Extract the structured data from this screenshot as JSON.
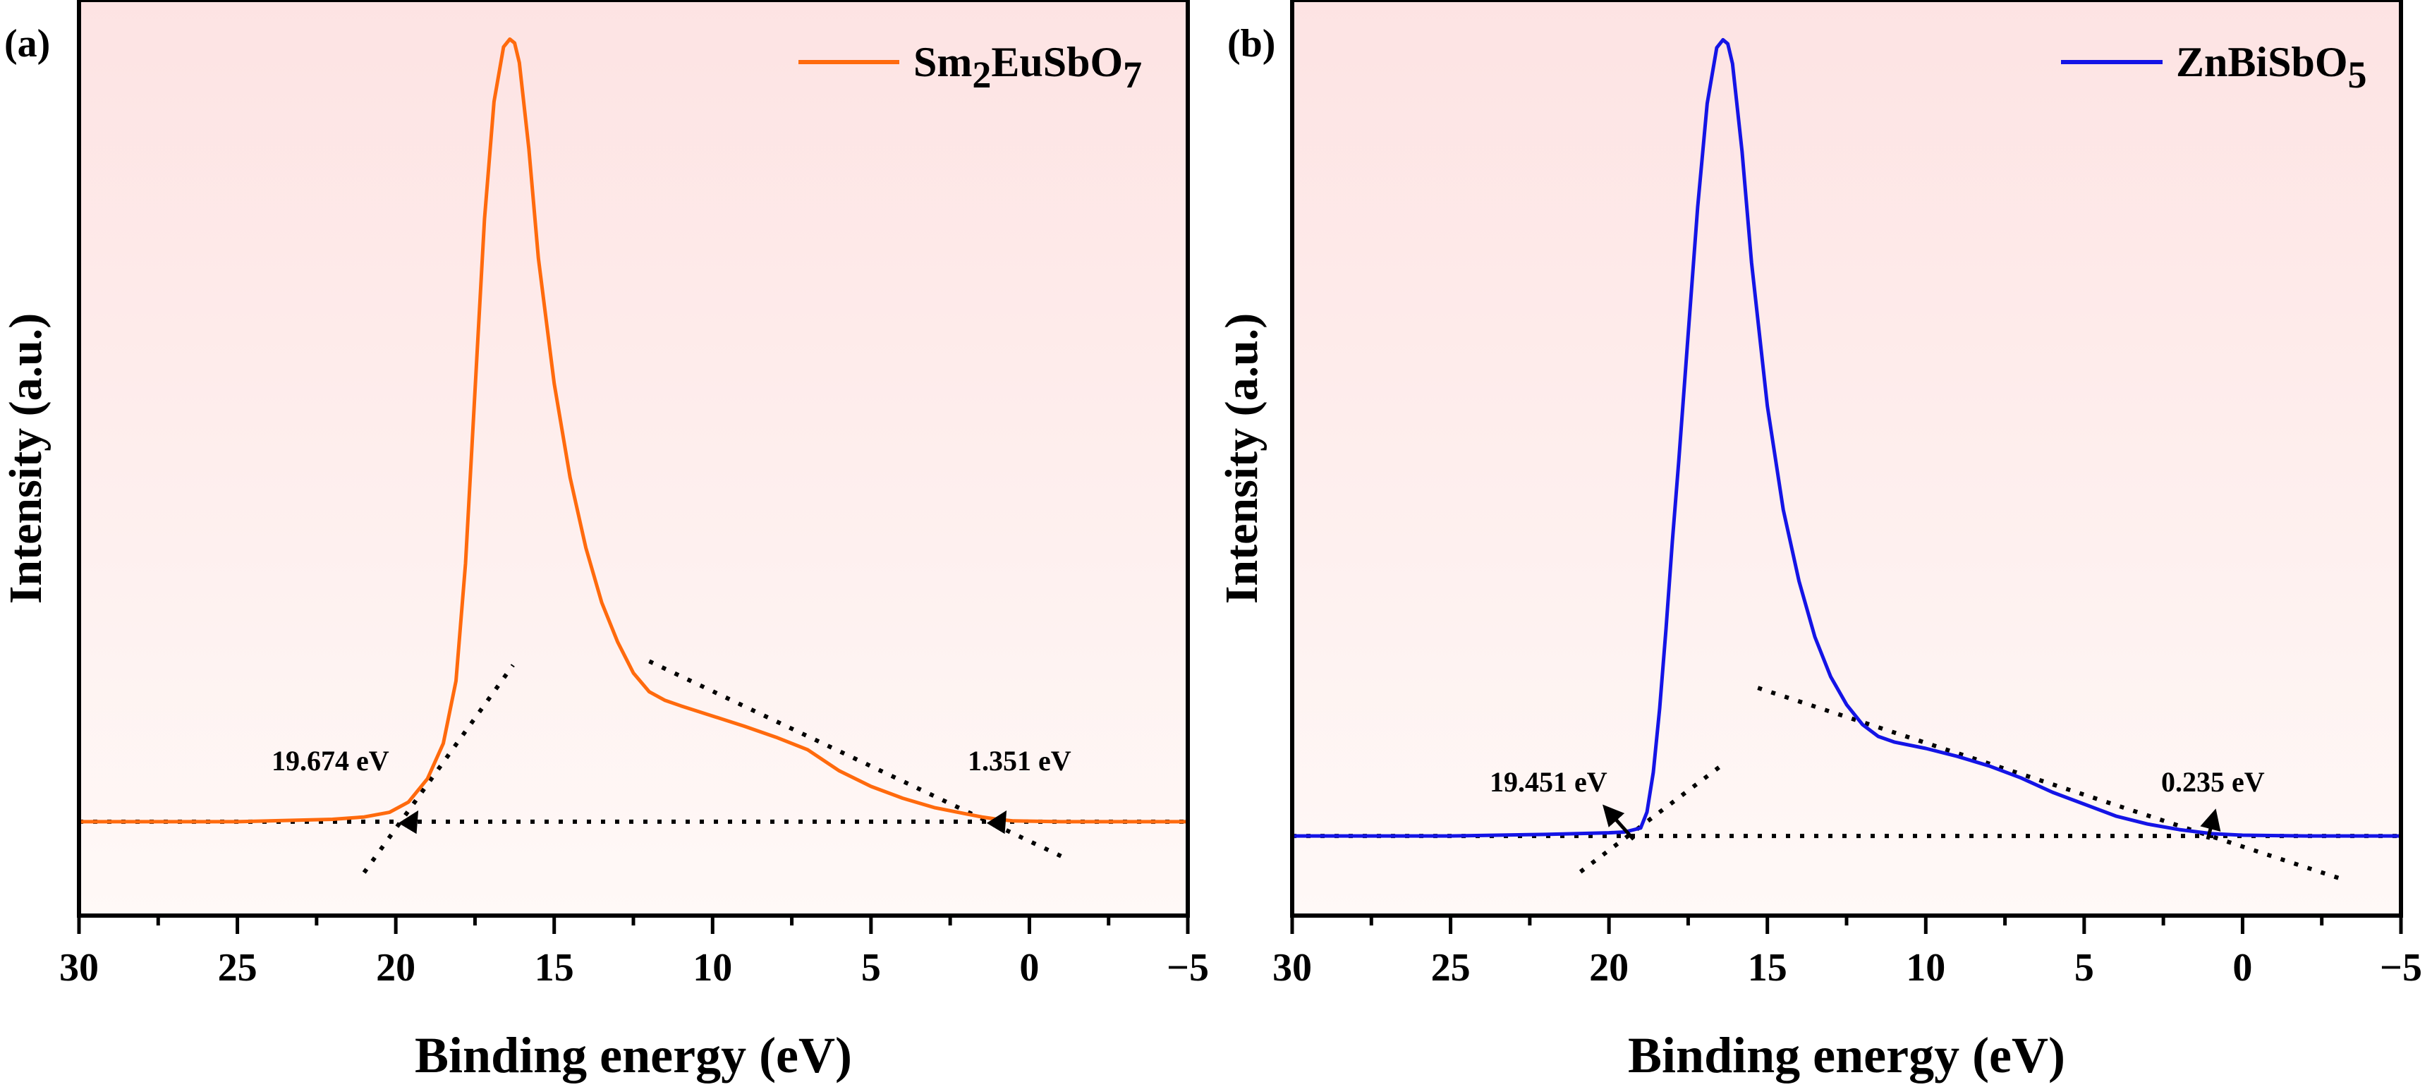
{
  "chart_data": [
    {
      "type": "line",
      "panel_label": "(a)",
      "title": "",
      "xlabel": "Binding energy (eV)",
      "ylabel": "Intensity (a.u.)",
      "xlim": [
        30,
        -5
      ],
      "ylim": [
        -0.12,
        1.05
      ],
      "xticks": [
        30,
        25,
        20,
        15,
        10,
        5,
        0,
        -5
      ],
      "xtick_labels": [
        "30",
        "25",
        "20",
        "15",
        "10",
        "5",
        "0",
        "−5"
      ],
      "grid": false,
      "legend": {
        "position": "top-right",
        "label_main": "Sm",
        "label_sub1": "2",
        "label_mid": "EuSbO",
        "label_sub2": "7"
      },
      "series": [
        {
          "name": "Sm2EuSbO7",
          "color": "#FF6A0D",
          "x": [
            30,
            25,
            22,
            21,
            20.2,
            19.6,
            19.0,
            18.5,
            18.1,
            17.8,
            17.5,
            17.2,
            16.9,
            16.6,
            16.4,
            16.25,
            16.1,
            15.8,
            15.5,
            15.0,
            14.5,
            14.0,
            13.5,
            13.0,
            12.5,
            12.0,
            11.5,
            11.0,
            10.0,
            9.0,
            8.0,
            7.0,
            6.0,
            5.0,
            4.0,
            3.0,
            2.0,
            1.5,
            1.0,
            0.5,
            -1,
            -3,
            -5
          ],
          "y": [
            0.0,
            0.0,
            0.003,
            0.006,
            0.012,
            0.025,
            0.055,
            0.1,
            0.18,
            0.33,
            0.55,
            0.77,
            0.92,
            0.99,
            1.0,
            0.995,
            0.97,
            0.86,
            0.72,
            0.56,
            0.44,
            0.35,
            0.28,
            0.23,
            0.19,
            0.166,
            0.155,
            0.148,
            0.135,
            0.122,
            0.108,
            0.092,
            0.065,
            0.045,
            0.03,
            0.018,
            0.01,
            0.006,
            0.003,
            0.001,
            0.0,
            0.0,
            0.0
          ]
        }
      ],
      "annotations": [
        {
          "text": "19.674 eV",
          "x": 19.674
        },
        {
          "text": "1.351 eV",
          "x": 1.351
        }
      ],
      "fit_lines": [
        {
          "x1": 21.0,
          "y1": -0.065,
          "x2": 16.3,
          "y2": 0.2
        },
        {
          "x1": 12.0,
          "y1": 0.205,
          "x2": -1.0,
          "y2": -0.044
        },
        {
          "x1": 30.0,
          "y1": 0.0,
          "x2": -5.0,
          "y2": 0.0
        }
      ]
    },
    {
      "type": "line",
      "panel_label": "(b)",
      "title": "",
      "xlabel": "Binding energy (eV)",
      "ylabel": "Intensity (a.u.)",
      "xlim": [
        30,
        -5
      ],
      "ylim": [
        -0.1,
        1.05
      ],
      "xticks": [
        30,
        25,
        20,
        15,
        10,
        5,
        0,
        -5
      ],
      "xtick_labels": [
        "30",
        "25",
        "20",
        "15",
        "10",
        "5",
        "0",
        "−5"
      ],
      "grid": false,
      "legend": {
        "position": "top-right",
        "label_main": "ZnBiSbO",
        "label_sub": "5"
      },
      "series": [
        {
          "name": "ZnBiSbO5",
          "color": "#1414E6",
          "x": [
            30,
            25,
            22,
            20,
            19.5,
            19.0,
            18.8,
            18.6,
            18.4,
            18.2,
            18.0,
            17.8,
            17.5,
            17.2,
            16.9,
            16.6,
            16.4,
            16.25,
            16.1,
            15.8,
            15.5,
            15.0,
            14.5,
            14.0,
            13.5,
            13.0,
            12.5,
            12.0,
            11.5,
            11.0,
            10.0,
            9.0,
            8.0,
            7.0,
            6.0,
            5.0,
            4.0,
            3.0,
            2.0,
            1.0,
            0.0,
            -2.0,
            -5.0
          ],
          "y": [
            0.0,
            0.0,
            0.002,
            0.004,
            0.005,
            0.01,
            0.03,
            0.08,
            0.16,
            0.26,
            0.37,
            0.47,
            0.63,
            0.79,
            0.92,
            0.99,
            1.0,
            0.995,
            0.97,
            0.86,
            0.72,
            0.54,
            0.41,
            0.32,
            0.25,
            0.2,
            0.165,
            0.14,
            0.125,
            0.118,
            0.11,
            0.1,
            0.088,
            0.073,
            0.055,
            0.04,
            0.025,
            0.015,
            0.008,
            0.003,
            0.001,
            0.0,
            0.0
          ]
        }
      ],
      "annotations": [
        {
          "text": "19.451 eV",
          "x": 19.451
        },
        {
          "text": "0.235 eV",
          "x": 0.235
        }
      ],
      "fit_lines": [
        {
          "x1": 20.9,
          "y1": -0.045,
          "x2": 16.3,
          "y2": 0.093
        },
        {
          "x1": 15.3,
          "y1": 0.186,
          "x2": -3.2,
          "y2": -0.055
        },
        {
          "x1": 30.0,
          "y1": 0.0,
          "x2": -5.0,
          "y2": 0.0
        }
      ]
    }
  ]
}
